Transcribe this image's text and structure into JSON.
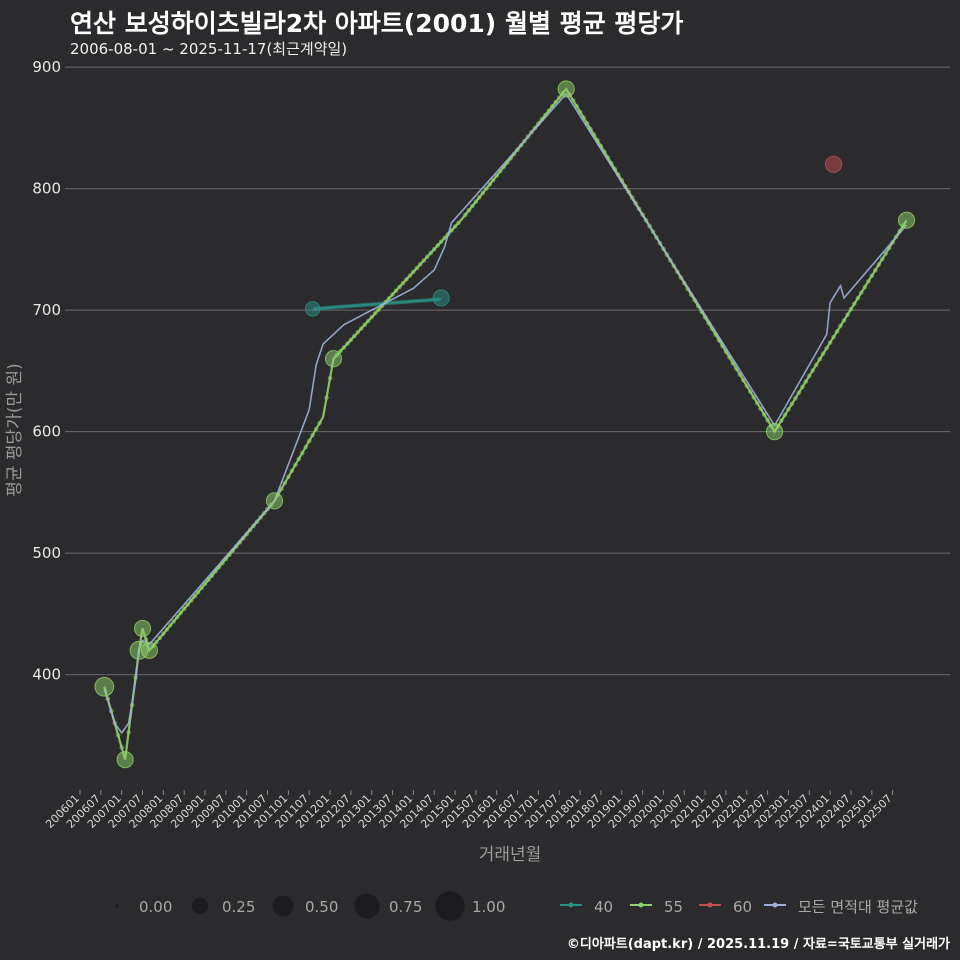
{
  "header": {
    "title": "연산 보성하이츠빌라2차 아파트(2001) 월별 평균 평당가",
    "subtitle": "2006-08-01 ~ 2025-11-17(최근계약일)"
  },
  "footer": {
    "source": "©디아파트(dapt.kr) / 2025.11.19 / 자료=국토교통부 실거래가"
  },
  "colors": {
    "background": "#2b2a2c",
    "grid": "#6b6b6b",
    "s40": "#2a8f86",
    "s55": "#8ed16a",
    "s60": "#c0504d",
    "avg": "#9fb0d8"
  },
  "chart_data": {
    "type": "line",
    "title": "연산 보성하이츠빌라2차 아파트(2001) 월별 평균 평당가",
    "xlabel": "거래년월",
    "ylabel": "평균 평당가(만 원)",
    "ylim": [
      305,
      910
    ],
    "yticks": [
      "400",
      "500",
      "600",
      "700",
      "800",
      "900"
    ],
    "x_start": "200601",
    "x_end": "202512",
    "xticks": [
      "200601",
      "200607",
      "200701",
      "200707",
      "200801",
      "200807",
      "200901",
      "200907",
      "201001",
      "201007",
      "201101",
      "201107",
      "201201",
      "201207",
      "201301",
      "201307",
      "201401",
      "201407",
      "201501",
      "201507",
      "201601",
      "201607",
      "201701",
      "201707",
      "201801",
      "201807",
      "201901",
      "201907",
      "202001",
      "202007",
      "202101",
      "202107",
      "202201",
      "202207",
      "202301",
      "202307",
      "202401",
      "202407",
      "202501",
      "202507"
    ],
    "series": [
      {
        "name": "40",
        "key": "s40",
        "line": [
          [
            "201108",
            701
          ],
          [
            "201409",
            709
          ]
        ],
        "points": [
          [
            "201108",
            701,
            0.5
          ],
          [
            "201409",
            710,
            0.6
          ]
        ]
      },
      {
        "name": "55",
        "key": "s55",
        "line": [
          [
            "200608",
            390
          ],
          [
            "200702",
            330
          ],
          [
            "200706",
            420
          ],
          [
            "200707",
            438
          ],
          [
            "200709",
            420
          ],
          [
            "201009",
            543
          ],
          [
            "201111",
            612
          ],
          [
            "201202",
            660
          ],
          [
            "201503",
            775
          ],
          [
            "201709",
            882
          ],
          [
            "202209",
            600
          ],
          [
            "202511",
            774
          ]
        ],
        "points": [
          [
            "200608",
            390,
            0.75
          ],
          [
            "200702",
            330,
            0.6
          ],
          [
            "200706",
            420,
            0.7
          ],
          [
            "200707",
            438,
            0.6
          ],
          [
            "200709",
            420,
            0.6
          ],
          [
            "201009",
            543,
            0.6
          ],
          [
            "201202",
            660,
            0.6
          ],
          [
            "201709",
            882,
            0.6
          ],
          [
            "202209",
            600,
            0.6
          ],
          [
            "202511",
            774,
            0.6
          ]
        ]
      },
      {
        "name": "60",
        "key": "s60",
        "line": [],
        "points": [
          [
            "202402",
            820,
            0.6
          ]
        ]
      },
      {
        "name": "모든 면적대 평균값",
        "key": "avg",
        "line": [
          [
            "200608",
            388
          ],
          [
            "200611",
            360
          ],
          [
            "200701",
            352
          ],
          [
            "200703",
            360
          ],
          [
            "200705",
            395
          ],
          [
            "200706",
            420
          ],
          [
            "200707",
            428
          ],
          [
            "200709",
            425
          ],
          [
            "201009",
            543
          ],
          [
            "201107",
            618
          ],
          [
            "201109",
            655
          ],
          [
            "201111",
            672
          ],
          [
            "201205",
            688
          ],
          [
            "201401",
            718
          ],
          [
            "201407",
            733
          ],
          [
            "201410",
            752
          ],
          [
            "201412",
            772
          ],
          [
            "201709",
            878
          ],
          [
            "202209",
            605
          ],
          [
            "202312",
            680
          ],
          [
            "202401",
            706
          ],
          [
            "202404",
            720
          ],
          [
            "202405",
            710
          ],
          [
            "202511",
            770
          ]
        ],
        "points": []
      }
    ],
    "size_legend": [
      "0.00",
      "0.25",
      "0.50",
      "0.75",
      "1.00"
    ],
    "color_legend": [
      "40",
      "55",
      "60",
      "모든 면적대 평균값"
    ]
  }
}
